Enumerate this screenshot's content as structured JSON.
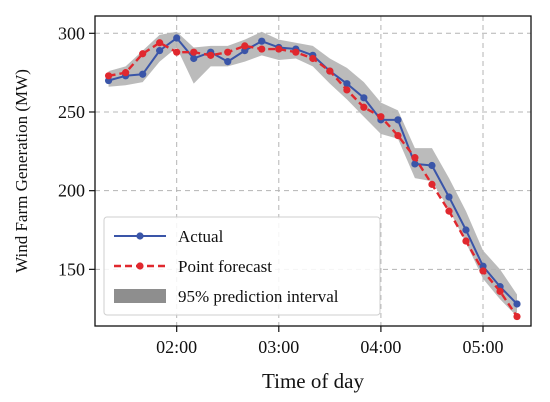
{
  "chart_data": {
    "type": "line",
    "xlabel": "Time of day",
    "ylabel": "Wind Farm Generation (MW)",
    "x_unit": "hours",
    "xlim": [
      1.2,
      5.47
    ],
    "ylim": [
      114,
      311
    ],
    "x_ticks": [
      {
        "value": 2.0,
        "label": "02:00"
      },
      {
        "value": 3.0,
        "label": "03:00"
      },
      {
        "value": 4.0,
        "label": "04:00"
      },
      {
        "value": 5.0,
        "label": "05:00"
      }
    ],
    "y_ticks": [
      {
        "value": 150,
        "label": "150"
      },
      {
        "value": 200,
        "label": "200"
      },
      {
        "value": 250,
        "label": "250"
      },
      {
        "value": 300,
        "label": "300"
      }
    ],
    "grid": true,
    "legend_position": "lower-left",
    "x": [
      1.333,
      1.5,
      1.667,
      1.833,
      2.0,
      2.167,
      2.333,
      2.5,
      2.667,
      2.833,
      3.0,
      3.167,
      3.333,
      3.5,
      3.667,
      3.833,
      4.0,
      4.167,
      4.333,
      4.5,
      4.667,
      4.833,
      5.0,
      5.167,
      5.333
    ],
    "series": [
      {
        "name": "Actual",
        "color": "#3a55a8",
        "style": "solid",
        "marker": "circle",
        "values": [
          270,
          273,
          274,
          289,
          297,
          284,
          288,
          282,
          289,
          295,
          291,
          290,
          286,
          276,
          268,
          259,
          245,
          245,
          217,
          216,
          196,
          175,
          152,
          139,
          128
        ]
      },
      {
        "name": "Point forecast",
        "color": "#e0282e",
        "style": "dashed",
        "marker": "circle",
        "values": [
          273,
          275,
          287,
          294,
          288,
          288,
          286,
          288,
          292,
          290,
          290,
          288,
          284,
          276,
          264,
          253,
          247,
          235,
          221,
          204,
          187,
          168,
          149,
          136,
          120
        ]
      },
      {
        "name": "95% prediction interval",
        "type": "band",
        "color": "#8e8e8e",
        "lower": [
          266,
          267,
          269,
          282,
          291,
          268,
          279,
          279,
          282,
          286,
          283,
          284,
          279,
          268,
          258,
          247,
          236,
          233,
          208,
          206,
          188,
          167,
          144,
          131,
          120
        ],
        "upper": [
          276,
          279,
          289,
          299,
          301,
          291,
          292,
          292,
          296,
          301,
          296,
          294,
          292,
          284,
          278,
          269,
          256,
          251,
          227,
          227,
          208,
          187,
          162,
          150,
          134
        ]
      }
    ]
  }
}
